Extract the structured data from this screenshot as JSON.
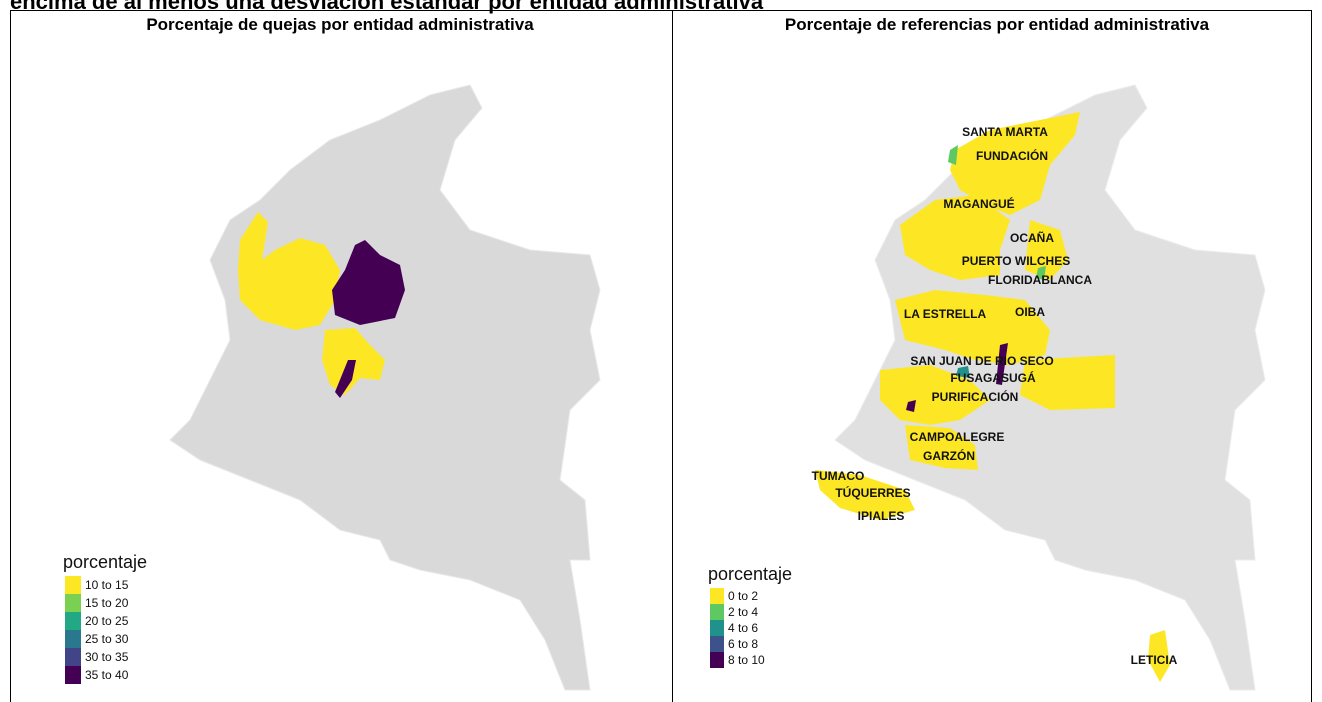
{
  "header": {
    "title": "encima de al menos una desviación estándar por entidad administrativa"
  },
  "panels": [
    {
      "title": "Porcentaje de quejas por entidad administrativa",
      "legend": {
        "title": "porcentaje",
        "items": [
          {
            "label": "10 to 15",
            "color": "#fde725"
          },
          {
            "label": "15 to 20",
            "color": "#7ad151"
          },
          {
            "label": "20 to 25",
            "color": "#22a884"
          },
          {
            "label": "25 to 30",
            "color": "#2a788e"
          },
          {
            "label": "30 to 35",
            "color": "#414487"
          },
          {
            "label": "35 to 40",
            "color": "#440154"
          }
        ]
      }
    },
    {
      "title": "Porcentaje de referencias por entidad administrativa",
      "legend": {
        "title": "porcentaje",
        "items": [
          {
            "label": "0 to 2",
            "color": "#fde725"
          },
          {
            "label": "2 to 4",
            "color": "#5ec962"
          },
          {
            "label": "4 to 6",
            "color": "#21918c"
          },
          {
            "label": "6 to 8",
            "color": "#3b528b"
          },
          {
            "label": "8 to 10",
            "color": "#440154"
          }
        ]
      },
      "places": [
        "SANTA MARTA",
        "FUNDACIÓN",
        "MAGANGUÉ",
        "OCAÑA",
        "PUERTO WILCHES",
        "FLORIDABLANCA",
        "LA ESTRELLA",
        "OIBA",
        "SAN JUAN DE RIO SECO",
        "FUSAGASUGÁ",
        "PURIFICACIÓN",
        "CAMPOALEGRE",
        "GARZÓN",
        "TUMACO",
        "TÚQUERRES",
        "IPIALES",
        "LETICIA"
      ]
    }
  ]
}
